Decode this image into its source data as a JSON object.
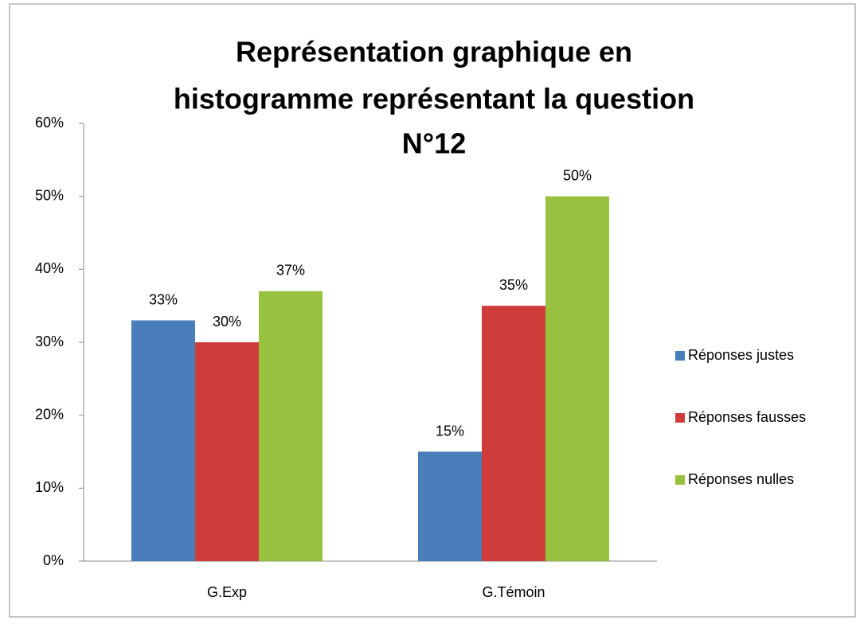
{
  "chart_data": {
    "type": "bar",
    "title": [
      "Représentation graphique en",
      "histogramme représentant la question",
      "N°12"
    ],
    "categories": [
      "G.Exp",
      "G.Témoin"
    ],
    "series": [
      {
        "name": "Réponses justes",
        "color": "#4a7ebb",
        "values": [
          33,
          15
        ],
        "value_labels": [
          "33%",
          "15%"
        ]
      },
      {
        "name": "Réponses fausses",
        "color": "#cf3d3a",
        "values": [
          30,
          35
        ],
        "value_labels": [
          "30%",
          "35%"
        ]
      },
      {
        "name": "Réponses nulles",
        "color": "#98c140",
        "values": [
          37,
          50
        ],
        "value_labels": [
          "37%",
          "50%"
        ]
      }
    ],
    "ylim": [
      0,
      60
    ],
    "yticks": [
      {
        "value": 0,
        "label": "0%"
      },
      {
        "value": 10,
        "label": "10%"
      },
      {
        "value": 20,
        "label": "20%"
      },
      {
        "value": 30,
        "label": "30%"
      },
      {
        "value": 40,
        "label": "40%"
      },
      {
        "value": 50,
        "label": "50%"
      },
      {
        "value": 60,
        "label": "60%"
      }
    ],
    "grid": false,
    "legend": "right"
  }
}
